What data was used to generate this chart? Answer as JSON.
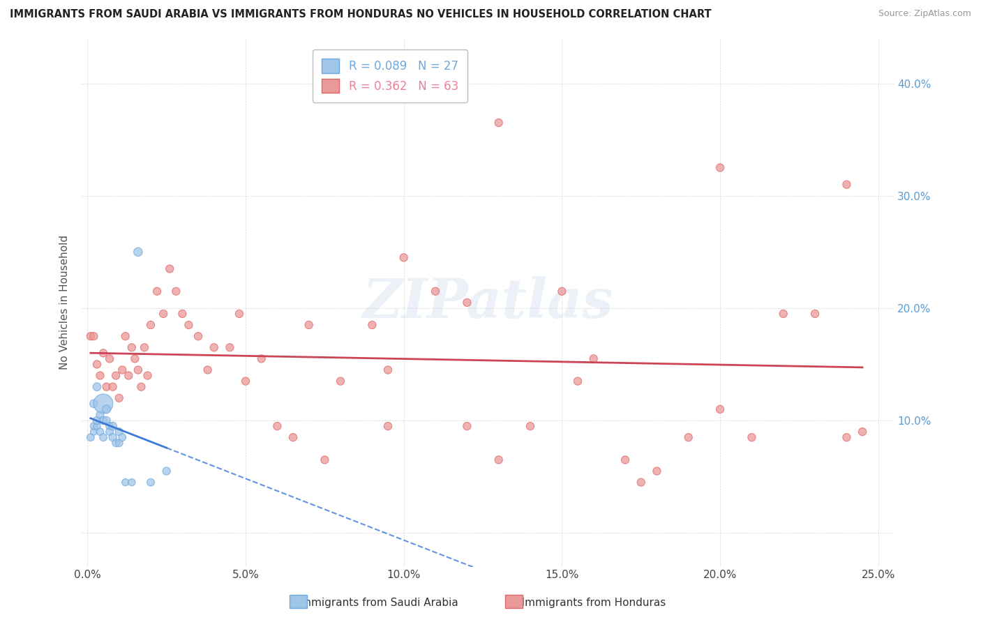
{
  "title": "IMMIGRANTS FROM SAUDI ARABIA VS IMMIGRANTS FROM HONDURAS NO VEHICLES IN HOUSEHOLD CORRELATION CHART",
  "source": "Source: ZipAtlas.com",
  "ylabel": "No Vehicles in Household",
  "xlim": [
    -0.002,
    0.255
  ],
  "ylim": [
    -0.03,
    0.44
  ],
  "y_ticks": [
    0.0,
    0.1,
    0.2,
    0.3,
    0.4
  ],
  "y_tick_labels_right": [
    "",
    "10.0%",
    "20.0%",
    "30.0%",
    "40.0%"
  ],
  "x_ticks": [
    0.0,
    0.05,
    0.1,
    0.15,
    0.2,
    0.25
  ],
  "x_tick_labels": [
    "0.0%",
    "5.0%",
    "10.0%",
    "15.0%",
    "20.0%",
    "25.0%"
  ],
  "legend_entries": [
    {
      "label_r": "R = 0.089",
      "label_n": "N = 27",
      "color": "#6fa8dc"
    },
    {
      "label_r": "R = 0.362",
      "label_n": "N = 63",
      "color": "#e8829a"
    }
  ],
  "saudi_x": [
    0.001,
    0.002,
    0.002,
    0.002,
    0.003,
    0.003,
    0.003,
    0.004,
    0.004,
    0.005,
    0.005,
    0.005,
    0.006,
    0.006,
    0.007,
    0.007,
    0.008,
    0.008,
    0.009,
    0.01,
    0.01,
    0.011,
    0.012,
    0.014,
    0.016,
    0.02,
    0.025
  ],
  "saudi_y": [
    0.085,
    0.09,
    0.095,
    0.115,
    0.095,
    0.1,
    0.13,
    0.09,
    0.105,
    0.115,
    0.1,
    0.085,
    0.11,
    0.1,
    0.095,
    0.09,
    0.085,
    0.095,
    0.08,
    0.09,
    0.08,
    0.085,
    0.045,
    0.045,
    0.25,
    0.045,
    0.055
  ],
  "saudi_sizes": [
    60,
    50,
    55,
    70,
    55,
    65,
    70,
    60,
    65,
    400,
    70,
    60,
    75,
    65,
    60,
    60,
    65,
    70,
    60,
    65,
    60,
    60,
    55,
    55,
    80,
    60,
    65
  ],
  "honduras_x": [
    0.001,
    0.002,
    0.003,
    0.004,
    0.005,
    0.006,
    0.007,
    0.008,
    0.009,
    0.01,
    0.011,
    0.012,
    0.013,
    0.014,
    0.015,
    0.016,
    0.017,
    0.018,
    0.019,
    0.02,
    0.022,
    0.024,
    0.026,
    0.028,
    0.03,
    0.032,
    0.035,
    0.038,
    0.04,
    0.045,
    0.048,
    0.05,
    0.055,
    0.06,
    0.065,
    0.07,
    0.075,
    0.08,
    0.09,
    0.095,
    0.1,
    0.11,
    0.12,
    0.13,
    0.14,
    0.15,
    0.155,
    0.16,
    0.17,
    0.175,
    0.18,
    0.19,
    0.2,
    0.21,
    0.22,
    0.23,
    0.24,
    0.245,
    0.095,
    0.12,
    0.13,
    0.24,
    0.2
  ],
  "honduras_y": [
    0.175,
    0.175,
    0.15,
    0.14,
    0.16,
    0.13,
    0.155,
    0.13,
    0.14,
    0.12,
    0.145,
    0.175,
    0.14,
    0.165,
    0.155,
    0.145,
    0.13,
    0.165,
    0.14,
    0.185,
    0.215,
    0.195,
    0.235,
    0.215,
    0.195,
    0.185,
    0.175,
    0.145,
    0.165,
    0.165,
    0.195,
    0.135,
    0.155,
    0.095,
    0.085,
    0.185,
    0.065,
    0.135,
    0.185,
    0.145,
    0.245,
    0.215,
    0.205,
    0.065,
    0.095,
    0.215,
    0.135,
    0.155,
    0.065,
    0.045,
    0.055,
    0.085,
    0.11,
    0.085,
    0.195,
    0.195,
    0.085,
    0.09,
    0.095,
    0.095,
    0.365,
    0.31,
    0.325
  ],
  "honduras_sizes": [
    65,
    65,
    65,
    65,
    65,
    65,
    65,
    65,
    65,
    65,
    65,
    65,
    65,
    65,
    65,
    65,
    65,
    65,
    65,
    65,
    65,
    65,
    65,
    65,
    65,
    65,
    65,
    65,
    65,
    65,
    65,
    65,
    65,
    65,
    65,
    65,
    65,
    65,
    65,
    65,
    65,
    65,
    65,
    65,
    65,
    65,
    65,
    65,
    65,
    65,
    65,
    65,
    65,
    65,
    65,
    65,
    65,
    65,
    65,
    65,
    65,
    65,
    65
  ],
  "saudi_color": "#9fc5e8",
  "saudi_edge_color": "#6fa8dc",
  "honduras_color": "#ea9999",
  "honduras_edge_color": "#e06666",
  "trend_saudi_color": "#3c78d8",
  "trend_honduras_color": "#cc4455",
  "watermark": "ZIPatlas",
  "background_color": "#ffffff",
  "grid_color": "#cccccc"
}
